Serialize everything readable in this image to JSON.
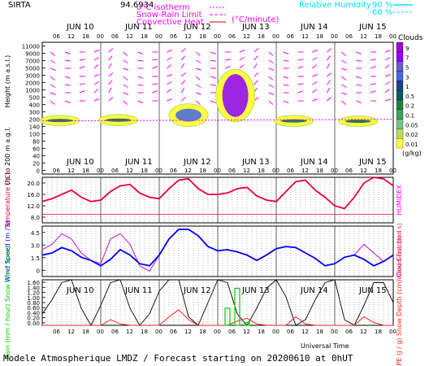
{
  "header": {
    "station": "SIRTA",
    "coord_text": "94.6934",
    "leg1": "0°C isotherm",
    "leg2": "Snow-Rain Limit",
    "leg3": "Convective Heat.",
    "leg3_unit": "(°C/minute)",
    "rh_label": "Relative Humidity",
    "rh_90": "90 %",
    "rh_60": "60 %"
  },
  "footer": {
    "model_line": "Modele Atmospherique LMDZ / Forecast starting on 20200610 at 0hUT",
    "universal_time": "Universal Time"
  },
  "days": [
    "JUN 10",
    "JUN 11",
    "JUN 12",
    "JUN 13",
    "JUN 14",
    "JUN 15"
  ],
  "hour_ticks": [
    "06",
    "12",
    "18",
    "00"
  ],
  "colors": {
    "wind_arrow": "#ff00ff",
    "rh": "#00e5ee",
    "temperature": "#e8003c",
    "humidex": "#ff00ff",
    "wind_speed": "#0000ff",
    "wind_gust": "#cc33cc",
    "rain": "#00cc00",
    "snow": "#00e5ee",
    "cape": "#ff2020",
    "cloud_fraction": "#000000",
    "grid": "#000000"
  },
  "cloud_scale": {
    "title": "Clouds",
    "unit": "(g/kg)",
    "labels": [
      "9",
      "7",
      "5",
      "3",
      "1",
      "0.5",
      "0.2",
      "0.1",
      "0.05",
      "0.02",
      "0.01"
    ],
    "colors": [
      "#a000d0",
      "#8b00ff",
      "#6a5acd",
      "#4169e1",
      "#1e3f8f",
      "#0b5c5c",
      "#1f7f3f",
      "#3f9f5f",
      "#7fc07f",
      "#b5dd5d",
      "#ffff40"
    ]
  },
  "chart_data": [
    {
      "type": "heatmap",
      "panel": "clouds-and-wind",
      "ylabel": "Height (m a.s.l.)",
      "ylabel2": "Up to 200 m a.g.l.",
      "ytick_labels": [
        "11000",
        "9000",
        "7000",
        "5000",
        "3000",
        "2000",
        "1000",
        "500",
        "400",
        "300",
        "200",
        "140",
        "100",
        "80",
        "60",
        "40",
        "20",
        "0"
      ],
      "cloud_cells": [
        {
          "day": 0.3,
          "hmin": 1000,
          "hmax": 1500,
          "level": 5
        },
        {
          "day": 1.3,
          "hmin": 1000,
          "hmax": 1600,
          "level": 5
        },
        {
          "day": 2.5,
          "hmin": 900,
          "hmax": 3000,
          "level": 7
        },
        {
          "day": 3.3,
          "hmin": 1500,
          "hmax": 7500,
          "level": 9
        },
        {
          "day": 4.3,
          "hmin": 900,
          "hmax": 1500,
          "level": 5
        },
        {
          "day": 5.4,
          "hmin": 900,
          "hmax": 1400,
          "level": 5
        }
      ]
    },
    {
      "type": "line",
      "panel": "temperature",
      "ylabel": "Temperature (°C)",
      "ylabel2": "HUMIDEX",
      "ytick_labels": [
        "20.0",
        "16.0",
        "12.0",
        "8.0"
      ],
      "ylim": [
        6,
        22
      ],
      "series": [
        {
          "name": "Temperature",
          "values": [
            13.5,
            14.5,
            16.0,
            17.5,
            15.0,
            13.5,
            14.0,
            17.0,
            19.0,
            19.5,
            16.5,
            15.0,
            14.5,
            18.0,
            21.0,
            21.5,
            18.0,
            16.0,
            16.0,
            16.5,
            18.0,
            18.5,
            15.5,
            14.0,
            13.5,
            17.0,
            20.5,
            21.0,
            17.5,
            15.0,
            12.0,
            11.0,
            15.0,
            20.0,
            22.0,
            21.5,
            19.0
          ]
        }
      ]
    },
    {
      "type": "line",
      "panel": "wind",
      "ylabel": "Wind Speed (m / s)",
      "ylabel2": "Wind Gust (m / s)",
      "ytick_labels": [
        "4.5",
        "3.0",
        "1.5",
        "0"
      ],
      "ylim": [
        0,
        4.7
      ],
      "series": [
        {
          "name": "Wind Speed",
          "values": [
            2.0,
            2.2,
            2.7,
            2.4,
            1.8,
            1.5,
            1.0,
            1.6,
            2.5,
            2.0,
            1.2,
            1.0,
            2.0,
            3.5,
            4.4,
            4.4,
            3.8,
            2.8,
            2.4,
            2.5,
            2.3,
            2.0,
            1.5,
            2.0,
            2.6,
            2.8,
            2.7,
            2.2,
            1.7,
            1.0,
            1.2,
            1.8,
            2.0,
            1.6,
            1.0,
            1.4,
            2.0
          ]
        },
        {
          "name": "Wind Gust",
          "values": [
            2.5,
            3.0,
            4.0,
            3.5,
            2.2,
            1.5,
            1.2,
            3.5,
            4.0,
            3.0,
            1.0,
            0.5,
            2.0,
            3.5,
            4.4,
            4.4,
            3.8,
            2.8,
            2.4,
            2.5,
            2.3,
            2.0,
            1.5,
            2.0,
            2.6,
            2.8,
            2.7,
            2.2,
            1.7,
            1.0,
            1.2,
            1.8,
            2.0,
            3.0,
            2.2,
            1.4,
            2.0
          ]
        }
      ]
    },
    {
      "type": "line",
      "panel": "precipitation",
      "ylabel": "Rain (mm / hour) Snow (cm / hour)",
      "ylabel2": "CAPE (J / g) Snow Depth (cm) Cloud Fraction",
      "ytick_labels": [
        "1.60",
        "1.40",
        "1.20",
        "1.00",
        "0.80",
        "0.60",
        "0.40",
        "0.20",
        "0.00"
      ],
      "ylim": [
        0,
        1.6
      ],
      "series": [
        {
          "name": "Cloud Fraction",
          "values": [
            0.4,
            0.9,
            1.5,
            1.6,
            0.6,
            0.0,
            0.7,
            1.5,
            1.6,
            0.6,
            0.0,
            0.4,
            1.2,
            1.6,
            1.6,
            0.3,
            0.0,
            0.8,
            1.6,
            1.5,
            0.4,
            0.0,
            0.6,
            1.3,
            1.6,
            1.0,
            0.0,
            0.2,
            0.9,
            1.5,
            1.6,
            0.2,
            0.0,
            0.7,
            1.5,
            1.5,
            0.8
          ]
        },
        {
          "name": "CAPE",
          "values": [
            0.0,
            0.0,
            0.0,
            0.0,
            0.0,
            0.0,
            0.0,
            0.2,
            0.05,
            0.0,
            0.0,
            0.0,
            0.0,
            0.3,
            0.55,
            0.2,
            0.0,
            0.0,
            0.0,
            0.0,
            0.15,
            0.25,
            0.05,
            0.0,
            0.0,
            0.0,
            0.3,
            0.05,
            0.0,
            0.0,
            0.0,
            0.0,
            0.0,
            0.3,
            0.1,
            0.0,
            0.0
          ]
        },
        {
          "name": "Rain",
          "values": [
            0,
            0,
            0,
            0,
            0,
            0,
            0,
            0,
            0,
            0,
            0,
            0,
            0,
            0,
            0,
            0,
            0,
            0,
            0,
            0.6,
            1.3,
            0.1,
            0,
            0,
            0,
            0,
            0,
            0,
            0,
            0,
            0,
            0,
            0,
            0,
            0,
            0,
            0
          ]
        }
      ]
    }
  ]
}
